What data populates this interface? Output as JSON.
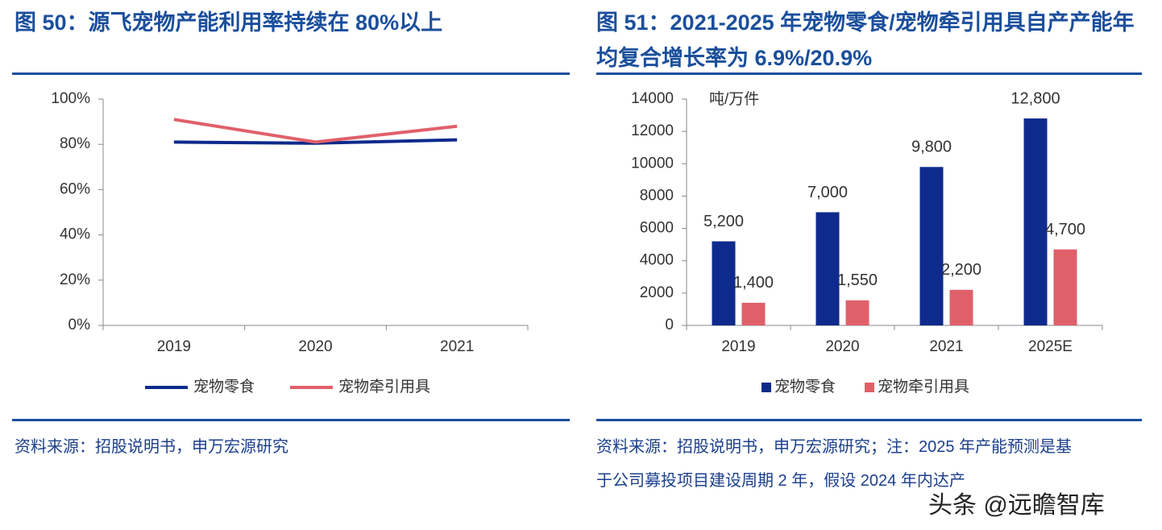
{
  "chart_data": [
    {
      "type": "line",
      "title": "图 50：源飞宠物产能利用率持续在 80%以上",
      "categories": [
        "2019",
        "2020",
        "2021"
      ],
      "series": [
        {
          "name": "宠物零食",
          "color": "#0e2a8c",
          "values": [
            81,
            80.5,
            82
          ]
        },
        {
          "name": "宠物牵引用具",
          "color": "#e0606a",
          "values": [
            91,
            81,
            88
          ]
        }
      ],
      "ylim": [
        0,
        100
      ],
      "yticks": [
        {
          "value": 0,
          "label": "0%"
        },
        {
          "value": 20,
          "label": "20%"
        },
        {
          "value": 40,
          "label": "40%"
        },
        {
          "value": 60,
          "label": "60%"
        },
        {
          "value": 80,
          "label": "80%"
        },
        {
          "value": 100,
          "label": "100%"
        }
      ],
      "grid": false,
      "source": "资料来源：招股说明书，申万宏源研究"
    },
    {
      "type": "bar",
      "title": "图 51：2021-2025 年宠物零食/宠物牵引用具自产产能年均复合增长率为 6.9%/20.9%",
      "y_label": "吨/万件",
      "categories": [
        "2019",
        "2020",
        "2021",
        "2025E"
      ],
      "series": [
        {
          "name": "宠物零食",
          "color": "#0e2a8c",
          "values": [
            5200,
            7000,
            9800,
            12800
          ],
          "value_labels": [
            "5,200",
            "7,000",
            "9,800",
            "12,800"
          ]
        },
        {
          "name": "宠物牵引用具",
          "color": "#e0606a",
          "values": [
            1400,
            1550,
            2200,
            4700
          ],
          "value_labels": [
            "1,400",
            "1,550",
            "2,200",
            "4,700"
          ]
        }
      ],
      "ylim": [
        0,
        14000
      ],
      "yticks": [
        0,
        2000,
        4000,
        6000,
        8000,
        10000,
        12000,
        14000
      ],
      "grid": false,
      "source": "资料来源：招股说明书，申万宏源研究；注：2025 年产能预测是基于公司募投项目建设周期 2 年，假设 2024 年内达产"
    }
  ],
  "watermark": "头条 @远瞻智库"
}
